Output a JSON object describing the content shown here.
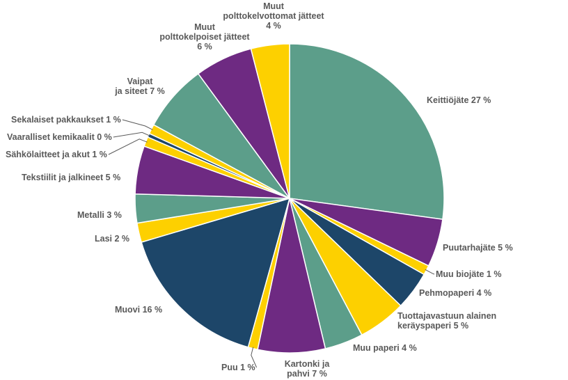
{
  "chart_data": {
    "type": "pie",
    "title": "",
    "slices": [
      {
        "label": "Keittiöjäte 27 %",
        "category": "Keittiöjäte",
        "value": 27,
        "color": "#5C9E8A"
      },
      {
        "label": "Puutarhajäte 5 %",
        "category": "Puutarhajäte",
        "value": 5,
        "color": "#6E2A82"
      },
      {
        "label": "Muu biojäte 1 %",
        "category": "Muu biojäte",
        "value": 1,
        "color": "#FDD000"
      },
      {
        "label": "Pehmopaperi 4 %",
        "category": "Pehmopaperi",
        "value": 4,
        "color": "#1D4669"
      },
      {
        "label": "Tuottajavastuun alainen keräyspaperi 5 %",
        "category": "Tuottajavastuun alainen keräyspaperi",
        "value": 5,
        "color": "#FDD000"
      },
      {
        "label": "Muu paperi 4 %",
        "category": "Muu paperi",
        "value": 4,
        "color": "#5C9E8A"
      },
      {
        "label": "Kartonki ja pahvi 7 %",
        "category": "Kartonki ja pahvi",
        "value": 7,
        "color": "#6E2A82"
      },
      {
        "label": "Puu 1 %",
        "category": "Puu",
        "value": 1,
        "color": "#FDD000"
      },
      {
        "label": "Muovi 16 %",
        "category": "Muovi",
        "value": 16,
        "color": "#1D4669"
      },
      {
        "label": "Lasi 2 %",
        "category": "Lasi",
        "value": 2,
        "color": "#FDD000"
      },
      {
        "label": "Metalli 3 %",
        "category": "Metalli",
        "value": 3,
        "color": "#5C9E8A"
      },
      {
        "label": "Tekstiilit ja jalkineet 5 %",
        "category": "Tekstiilit ja jalkineet",
        "value": 5,
        "color": "#6E2A82"
      },
      {
        "label": "Sähkölaitteet ja akut 1 %",
        "category": "Sähkölaitteet ja akut",
        "value": 1,
        "color": "#FDD000"
      },
      {
        "label": "Vaaralliset kemikaalit 0 %",
        "category": "Vaaralliset kemikaalit",
        "value": 0.4,
        "color": "#1D4669"
      },
      {
        "label": "Sekalaiset pakkaukset 1 %",
        "category": "Sekalaiset pakkaukset",
        "value": 1,
        "color": "#FDD000"
      },
      {
        "label": "Vaipat ja siteet 7 %",
        "category": "Vaipat ja siteet",
        "value": 7,
        "color": "#5C9E8A"
      },
      {
        "label": "Muut polttokelpoiset jätteet 6 %",
        "category": "Muut polttokelpoiset jätteet",
        "value": 6,
        "color": "#6E2A82"
      },
      {
        "label": "Muut polttokelvottomat jätteet 4 %",
        "category": "Muut polttokelvottomat jätteet",
        "value": 4,
        "color": "#FDD000"
      }
    ],
    "units": "%",
    "legend": "none",
    "label_color": "#595959",
    "start": "12 o'clock",
    "direction": "clockwise"
  }
}
